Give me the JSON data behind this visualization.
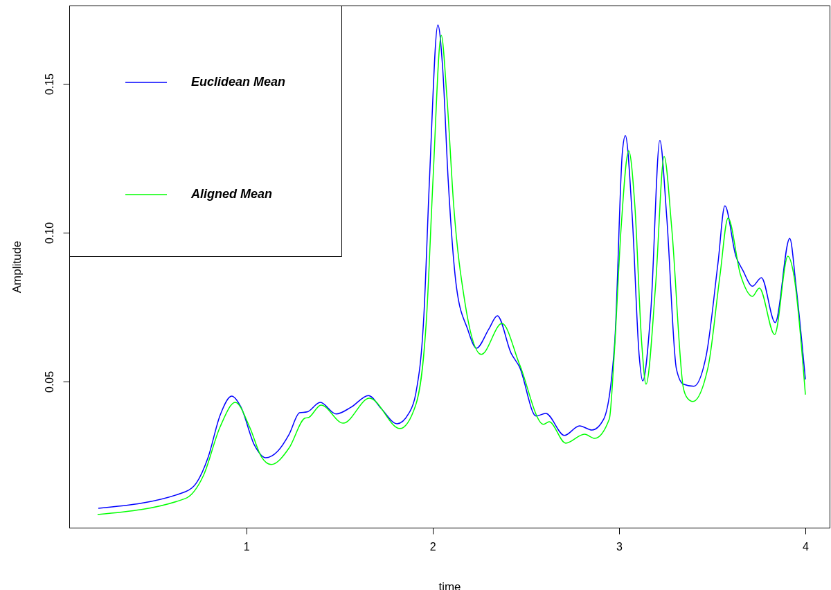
{
  "chart_data": {
    "type": "line",
    "xlabel": "time",
    "ylabel": "Amplitude",
    "xlim": [
      0.05,
      4.13
    ],
    "xticks": [
      1,
      2,
      3,
      4
    ],
    "ylim": [
      0.0009,
      0.1763
    ],
    "yticks": [
      {
        "value": 0.05,
        "label": "0.05"
      },
      {
        "value": 0.1,
        "label": "0.10"
      },
      {
        "value": 0.15,
        "label": "0.15"
      }
    ],
    "legend": "top left",
    "grid": false,
    "marker": "none",
    "line_style": "solid",
    "series": [
      {
        "name": "Euclidean Mean",
        "color": "#0000ff",
        "x": [
          0.206,
          0.674,
          0.733,
          0.796,
          0.859,
          0.922,
          0.97,
          1.044,
          1.104,
          1.167,
          1.23,
          1.286,
          1.327,
          1.397,
          1.482,
          1.563,
          1.656,
          1.724,
          1.809,
          1.872,
          1.909,
          1.953,
          1.983,
          2.028,
          2.054,
          2.083,
          2.128,
          2.187,
          2.235,
          2.302,
          2.347,
          2.421,
          2.466,
          2.555,
          2.607,
          2.707,
          2.788,
          2.855,
          2.918,
          2.977,
          3.018,
          3.034,
          3.071,
          3.108,
          3.127,
          3.171,
          3.219,
          3.256,
          3.308,
          3.345,
          3.401,
          3.468,
          3.531,
          3.568,
          3.627,
          3.664,
          3.716,
          3.764,
          3.838,
          3.916,
          3.95,
          4.0
        ],
        "values": [
          0.0074,
          0.013,
          0.016,
          0.0247,
          0.0386,
          0.0451,
          0.0416,
          0.0286,
          0.0244,
          0.0265,
          0.0323,
          0.0395,
          0.0398,
          0.043,
          0.0391,
          0.0414,
          0.0453,
          0.0409,
          0.0358,
          0.0393,
          0.0458,
          0.0723,
          0.118,
          0.1698,
          0.155,
          0.118,
          0.0816,
          0.0677,
          0.0612,
          0.0677,
          0.0721,
          0.0595,
          0.0549,
          0.0384,
          0.0393,
          0.0319,
          0.0351,
          0.0337,
          0.0374,
          0.0633,
          0.127,
          0.1326,
          0.1053,
          0.0588,
          0.0502,
          0.0742,
          0.131,
          0.1053,
          0.0542,
          0.0491,
          0.0484,
          0.0588,
          0.0898,
          0.109,
          0.0921,
          0.0874,
          0.082,
          0.0849,
          0.0698,
          0.0981,
          0.082,
          0.0507
        ]
      },
      {
        "name": "Aligned Mean",
        "color": "#00ff00",
        "x": [
          0.202,
          0.673,
          0.77,
          0.859,
          0.941,
          1.018,
          1.081,
          1.133,
          1.23,
          1.315,
          1.334,
          1.401,
          1.52,
          1.661,
          1.824,
          1.909,
          1.968,
          2.002,
          2.046,
          2.076,
          2.113,
          2.172,
          2.261,
          2.372,
          2.466,
          2.595,
          2.625,
          2.714,
          2.815,
          2.87,
          2.948,
          2.974,
          3.011,
          3.052,
          3.085,
          3.122,
          3.145,
          3.196,
          3.242,
          3.283,
          3.345,
          3.367,
          3.396,
          3.478,
          3.542,
          3.585,
          3.652,
          3.716,
          3.753,
          3.835,
          3.906,
          3.938,
          4.0
        ],
        "values": [
          0.0053,
          0.0107,
          0.0184,
          0.0347,
          0.043,
          0.0347,
          0.0247,
          0.0221,
          0.0277,
          0.0377,
          0.0379,
          0.0421,
          0.036,
          0.0444,
          0.0342,
          0.0421,
          0.0723,
          0.118,
          0.1663,
          0.146,
          0.109,
          0.077,
          0.0591,
          0.0695,
          0.0558,
          0.0356,
          0.0365,
          0.0293,
          0.0323,
          0.0309,
          0.0374,
          0.0588,
          0.1014,
          0.1275,
          0.109,
          0.0626,
          0.0491,
          0.0821,
          0.1256,
          0.1014,
          0.0479,
          0.0444,
          0.0433,
          0.0549,
          0.0858,
          0.1049,
          0.0858,
          0.0786,
          0.0814,
          0.0658,
          0.0921,
          0.0858,
          0.0456
        ]
      }
    ]
  }
}
